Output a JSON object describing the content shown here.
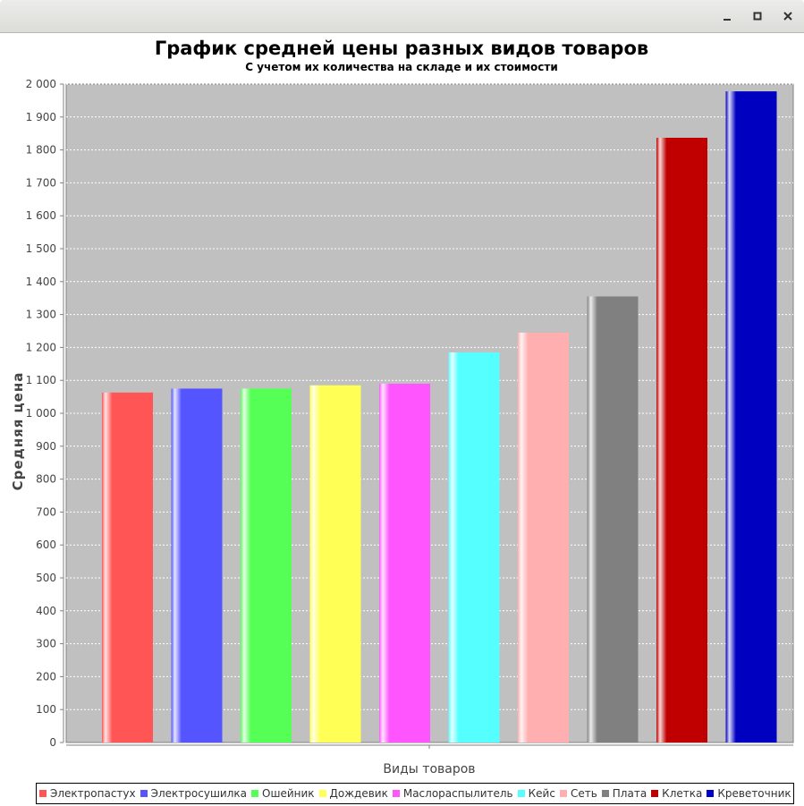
{
  "window": {
    "buttons": [
      "minimize",
      "maximize",
      "close"
    ]
  },
  "chart_data": {
    "type": "bar",
    "title": "График средней цены разных видов товаров",
    "subtitle": "С учетом их количества на складе и их стоимости",
    "xlabel": "Виды товаров",
    "ylabel": "Средняя цена",
    "ylim": [
      0,
      2000
    ],
    "yticks": [
      "0",
      "100",
      "200",
      "300",
      "400",
      "500",
      "600",
      "700",
      "800",
      "900",
      "1 000",
      "1 100",
      "1 200",
      "1 300",
      "1 400",
      "1 500",
      "1 600",
      "1 700",
      "1 800",
      "1 900",
      "2 000"
    ],
    "grid": true,
    "legend_position": "bottom",
    "series": [
      {
        "name": "Электропастух",
        "value": 1063,
        "color": "#ff5555"
      },
      {
        "name": "Электросушилка",
        "value": 1075,
        "color": "#5555ff"
      },
      {
        "name": "Ошейник",
        "value": 1075,
        "color": "#55ff55"
      },
      {
        "name": "Дождевик",
        "value": 1085,
        "color": "#ffff55"
      },
      {
        "name": "Маслораспылитель",
        "value": 1090,
        "color": "#ff55ff"
      },
      {
        "name": "Кейс",
        "value": 1185,
        "color": "#55ffff"
      },
      {
        "name": "Сеть",
        "value": 1245,
        "color": "#ffafaf"
      },
      {
        "name": "Плата",
        "value": 1355,
        "color": "#808080"
      },
      {
        "name": "Клетка",
        "value": 1837,
        "color": "#c00000"
      },
      {
        "name": "Креветочник",
        "value": 1978,
        "color": "#0000c0"
      }
    ]
  }
}
